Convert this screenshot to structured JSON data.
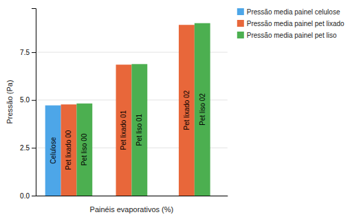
{
  "chart_data": {
    "type": "bar",
    "xlabel": "Painéis evaporativos (%)",
    "ylabel": "Pressão (Pa)",
    "categories": [
      null,
      null,
      null
    ],
    "series": [
      {
        "name": "Pressão media painel celulose",
        "color": "#4da6e8",
        "values": [
          4.72,
          null,
          null
        ],
        "labels": [
          "Celulose",
          null,
          null
        ]
      },
      {
        "name": "Pressão media painel pet lixado",
        "color": "#e8673a",
        "values": [
          4.77,
          6.85,
          8.93
        ],
        "labels": [
          "Pet lixado 00",
          "Pet lixado 01",
          "Pet lixado 02"
        ]
      },
      {
        "name": "Pressão media painel pet liso",
        "color": "#4caf50",
        "values": [
          4.82,
          6.88,
          9.02
        ],
        "labels": [
          "Pet liso 00",
          "Pet liso 01",
          "Pet liso 02"
        ]
      }
    ],
    "ylim": [
      0,
      9.8
    ],
    "yticks": [
      {
        "value": 0,
        "label": "0.0"
      },
      2.5,
      {
        "value": 5,
        "label": "5.0"
      },
      7.5
    ],
    "grid": true,
    "legend": "right",
    "tick_labels": "y"
  }
}
